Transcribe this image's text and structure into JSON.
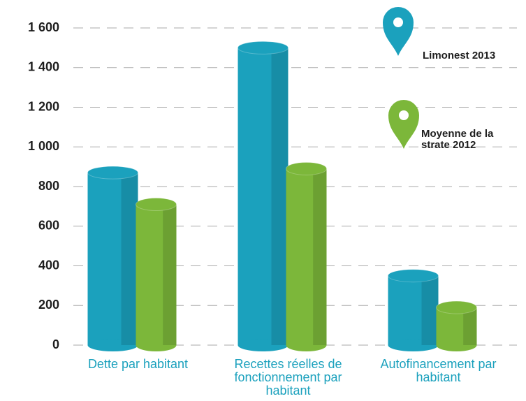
{
  "chart_data": {
    "type": "bar",
    "categories": [
      "Dette par habitant",
      "Recettes réelles de fonctionnement par habitant",
      "Autofinancement par habitant"
    ],
    "series": [
      {
        "name": "Limonest 2013",
        "color": "#1ba1bd",
        "values": [
          870,
          1500,
          350
        ]
      },
      {
        "name": "Moyenne de la strate 2012",
        "color": "#7cb73a",
        "values": [
          710,
          890,
          190
        ]
      }
    ],
    "ylim": [
      0,
      1600
    ],
    "yticks": [
      0,
      200,
      400,
      600,
      800,
      {
        "value": 1000,
        "label": "1 000"
      },
      {
        "value": 1200,
        "label": "1 200"
      },
      {
        "value": 1400,
        "label": "1 400"
      },
      {
        "value": 1600,
        "label": "1 600"
      }
    ],
    "grid": true,
    "legend": "top-right"
  }
}
